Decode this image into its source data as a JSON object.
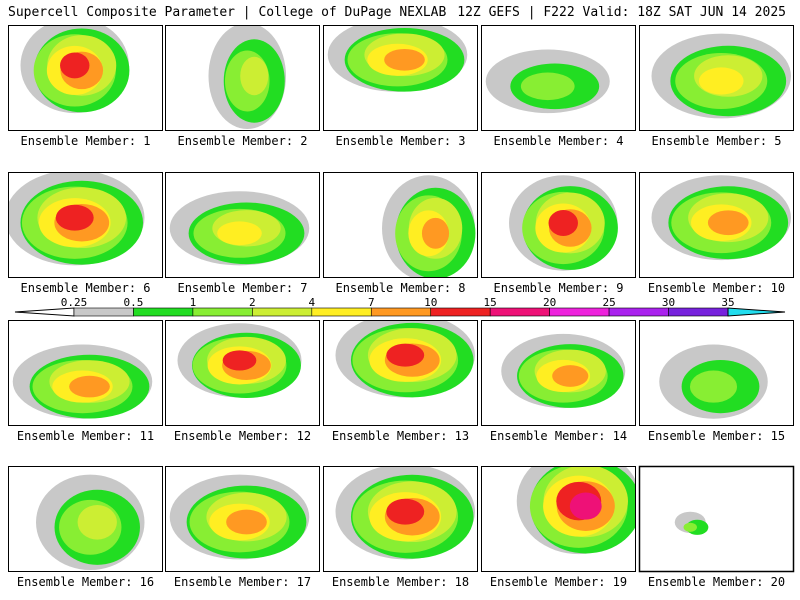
{
  "header": {
    "left": "Supercell Composite Parameter | College of DuPage NEXLAB",
    "right": "12Z GEFS | F222 Valid: 18Z SAT JUN 14 2025"
  },
  "legend": {
    "ticks": [
      "0.25",
      "0.5",
      "1",
      "2",
      "4",
      "7",
      "10",
      "15",
      "20",
      "25",
      "30",
      "35"
    ],
    "colors": [
      "#c8c8c8",
      "#22dd22",
      "#88ee33",
      "#ccee33",
      "#ffee22",
      "#ff9922",
      "#ee2222",
      "#ee1177",
      "#ee22dd",
      "#aa22ee",
      "#7722dd",
      "#aa66dd",
      "#22ddee"
    ]
  },
  "panels": [
    {
      "label": "Ensemble Member: 1",
      "peak": 10
    },
    {
      "label": "Ensemble Member: 2",
      "peak": 2
    },
    {
      "label": "Ensemble Member: 3",
      "peak": 7
    },
    {
      "label": "Ensemble Member: 4",
      "peak": 1
    },
    {
      "label": "Ensemble Member: 5",
      "peak": 4
    },
    {
      "label": "Ensemble Member: 6",
      "peak": 10
    },
    {
      "label": "Ensemble Member: 7",
      "peak": 4
    },
    {
      "label": "Ensemble Member: 8",
      "peak": 7
    },
    {
      "label": "Ensemble Member: 9",
      "peak": 10
    },
    {
      "label": "Ensemble Member: 10",
      "peak": 7
    },
    {
      "label": "Ensemble Member: 11",
      "peak": 7
    },
    {
      "label": "Ensemble Member: 12",
      "peak": 10
    },
    {
      "label": "Ensemble Member: 13",
      "peak": 10
    },
    {
      "label": "Ensemble Member: 14",
      "peak": 7
    },
    {
      "label": "Ensemble Member: 15",
      "peak": 1
    },
    {
      "label": "Ensemble Member: 16",
      "peak": 2
    },
    {
      "label": "Ensemble Member: 17",
      "peak": 7
    },
    {
      "label": "Ensemble Member: 18",
      "peak": 10
    },
    {
      "label": "Ensemble Member: 19",
      "peak": 15
    },
    {
      "label": "Ensemble Member: 20",
      "peak": 1
    }
  ]
}
